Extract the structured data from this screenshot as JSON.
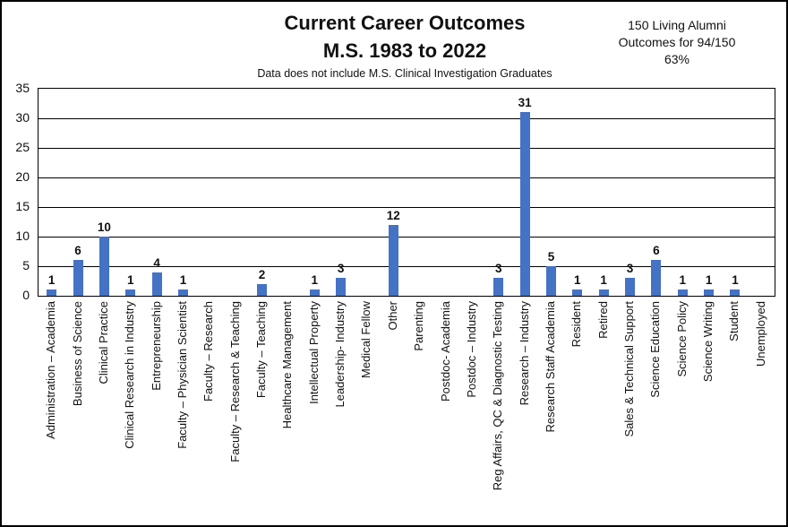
{
  "header": {
    "title_line1": "Current Career Outcomes",
    "title_line2": "M.S. 1983 to 2022",
    "subtitle": "Data does not include M.S. Clinical Investigation Graduates"
  },
  "annotation": {
    "line1": "150 Living Alumni",
    "line2": "Outcomes for 94/150",
    "line3": "63%"
  },
  "chart_data": {
    "type": "bar",
    "title": "Current Career Outcomes M.S. 1983 to 2022",
    "subtitle": "Data does not include M.S. Clinical Investigation Graduates",
    "categories": [
      "Administration – Academia",
      "Business of Science",
      "Clinical Practice",
      "Clinical Research in Industry",
      "Entrepreneurship",
      "Faculty – Physician Scientist",
      "Faculty – Research",
      "Faculty – Research & Teaching",
      "Faculty – Teaching",
      "Healthcare Management",
      "Intellectual Property",
      "Leadership- Industry",
      "Medical Fellow",
      "Other",
      "Parenting",
      "Postdoc- Academia",
      "Postdoc – Industry",
      "Reg Affairs, QC & Diagnostic Testing",
      "Research – Industry",
      "Research Staff Academia",
      "Resident",
      "Retired",
      "Sales & Technical Support",
      "Science Education",
      "Science Policy",
      "Science Writing",
      "Student",
      "Unemployed"
    ],
    "values": [
      1,
      6,
      10,
      1,
      4,
      1,
      0,
      0,
      2,
      0,
      1,
      3,
      0,
      12,
      0,
      0,
      0,
      3,
      31,
      5,
      1,
      1,
      3,
      6,
      1,
      1,
      1,
      0
    ],
    "xlabel": "",
    "ylabel": "",
    "ylim": [
      0,
      35
    ],
    "ytick_step": 5,
    "grid": "horizontal",
    "legend": "none",
    "bar_color": "#4472C4",
    "show_value_labels": true,
    "value_labels_hidden_for_zero": true
  }
}
